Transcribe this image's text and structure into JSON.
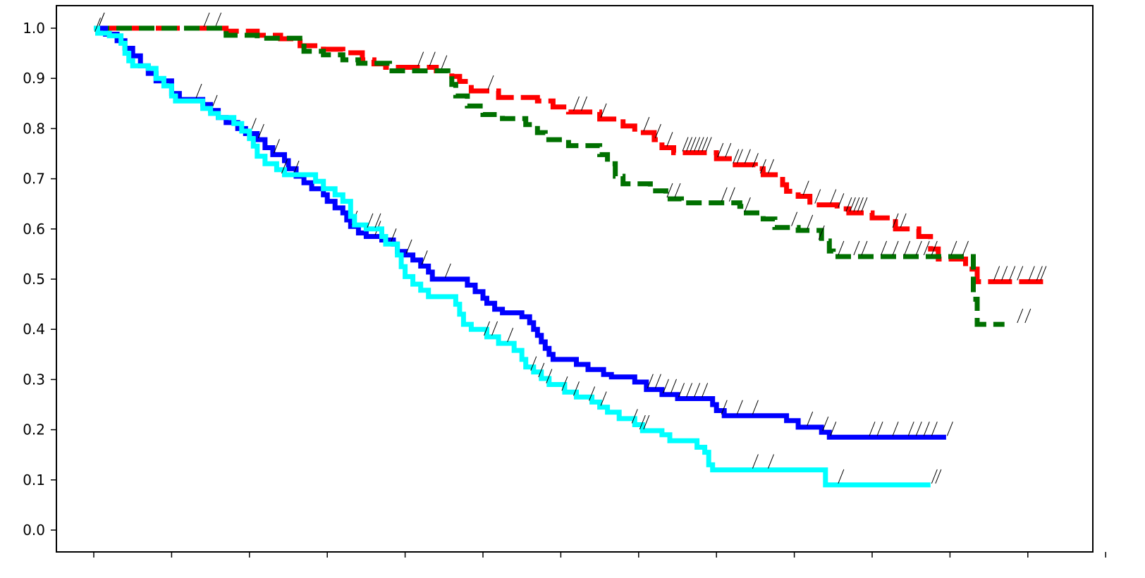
{
  "chart_data": {
    "type": "line",
    "chart_style": "kaplan-meier survival curves (step lines with censor tick marks)",
    "title": "",
    "xlabel": "",
    "ylabel": "",
    "ylim": [
      0.0,
      1.0
    ],
    "yticks": [
      "0.0",
      "0.1",
      "0.2",
      "0.3",
      "0.4",
      "0.5",
      "0.6",
      "0.7",
      "0.8",
      "0.9",
      "1.0"
    ],
    "x_tick_count": 14,
    "x_tick_labels_visible": false,
    "x_range": [
      0,
      13
    ],
    "grid": false,
    "legend": "none",
    "series": [
      {
        "color": "#ff0000",
        "line_style": "long-dash",
        "steps": [
          [
            0.0,
            1.0
          ],
          [
            1.7,
            0.994
          ],
          [
            2.1,
            0.986
          ],
          [
            2.4,
            0.979
          ],
          [
            2.65,
            0.965
          ],
          [
            2.95,
            0.958
          ],
          [
            3.2,
            0.951
          ],
          [
            3.45,
            0.937
          ],
          [
            3.6,
            0.929
          ],
          [
            3.75,
            0.922
          ],
          [
            4.4,
            0.915
          ],
          [
            4.6,
            0.904
          ],
          [
            4.7,
            0.894
          ],
          [
            4.85,
            0.875
          ],
          [
            5.2,
            0.862
          ],
          [
            5.7,
            0.855
          ],
          [
            5.9,
            0.843
          ],
          [
            6.1,
            0.833
          ],
          [
            6.5,
            0.819
          ],
          [
            6.8,
            0.805
          ],
          [
            6.95,
            0.792
          ],
          [
            7.2,
            0.778
          ],
          [
            7.3,
            0.762
          ],
          [
            7.45,
            0.752
          ],
          [
            8.0,
            0.74
          ],
          [
            8.2,
            0.728
          ],
          [
            8.5,
            0.72
          ],
          [
            8.6,
            0.708
          ],
          [
            8.85,
            0.688
          ],
          [
            8.9,
            0.675
          ],
          [
            9.05,
            0.665
          ],
          [
            9.2,
            0.648
          ],
          [
            9.55,
            0.64
          ],
          [
            9.7,
            0.632
          ],
          [
            10.0,
            0.622
          ],
          [
            10.3,
            0.6
          ],
          [
            10.6,
            0.585
          ],
          [
            10.75,
            0.56
          ],
          [
            10.85,
            0.54
          ],
          [
            11.2,
            0.52
          ],
          [
            11.35,
            0.495
          ],
          [
            12.2,
            0.495
          ]
        ],
        "censors": [
          0.1,
          1.45,
          1.6,
          4.2,
          4.35,
          4.5,
          5.1,
          6.2,
          6.3,
          6.55,
          7.1,
          7.25,
          7.4,
          7.6,
          7.65,
          7.7,
          7.75,
          7.8,
          7.85,
          7.9,
          8.05,
          8.15,
          8.25,
          8.3,
          8.4,
          8.5,
          8.6,
          8.7,
          9.15,
          9.3,
          9.5,
          9.6,
          9.7,
          9.75,
          9.8,
          9.85,
          9.9,
          10.3,
          10.4,
          11.6,
          11.7,
          11.8,
          11.9,
          12.05,
          12.15,
          12.2
        ]
      },
      {
        "color": "#007000",
        "line_style": "dash",
        "steps": [
          [
            0.0,
            1.0
          ],
          [
            1.7,
            0.986
          ],
          [
            2.1,
            0.98
          ],
          [
            2.7,
            0.954
          ],
          [
            2.95,
            0.947
          ],
          [
            3.2,
            0.937
          ],
          [
            3.4,
            0.93
          ],
          [
            3.8,
            0.915
          ],
          [
            4.55,
            0.905
          ],
          [
            4.6,
            0.888
          ],
          [
            4.65,
            0.865
          ],
          [
            4.8,
            0.845
          ],
          [
            5.0,
            0.828
          ],
          [
            5.25,
            0.82
          ],
          [
            5.55,
            0.808
          ],
          [
            5.7,
            0.792
          ],
          [
            5.8,
            0.778
          ],
          [
            6.1,
            0.766
          ],
          [
            6.5,
            0.748
          ],
          [
            6.6,
            0.73
          ],
          [
            6.7,
            0.705
          ],
          [
            6.8,
            0.69
          ],
          [
            7.15,
            0.676
          ],
          [
            7.35,
            0.66
          ],
          [
            7.55,
            0.652
          ],
          [
            8.3,
            0.645
          ],
          [
            8.35,
            0.632
          ],
          [
            8.6,
            0.62
          ],
          [
            8.75,
            0.603
          ],
          [
            9.05,
            0.597
          ],
          [
            9.35,
            0.576
          ],
          [
            9.45,
            0.556
          ],
          [
            9.5,
            0.545
          ],
          [
            11.25,
            0.545
          ],
          [
            11.3,
            0.46
          ],
          [
            11.35,
            0.41
          ],
          [
            11.7,
            0.41
          ]
        ],
        "censors": [
          7.4,
          7.5,
          8.1,
          8.2,
          8.4,
          9.0,
          9.2,
          9.35,
          9.6,
          9.8,
          9.9,
          10.15,
          10.3,
          10.45,
          10.6,
          10.7,
          10.8,
          11.05,
          11.2,
          11.9,
          12.0
        ]
      },
      {
        "color": "#0000ff",
        "line_style": "solid",
        "steps": [
          [
            0.0,
            1.0
          ],
          [
            0.15,
            0.988
          ],
          [
            0.3,
            0.975
          ],
          [
            0.4,
            0.96
          ],
          [
            0.5,
            0.945
          ],
          [
            0.6,
            0.925
          ],
          [
            0.7,
            0.91
          ],
          [
            0.8,
            0.895
          ],
          [
            1.0,
            0.87
          ],
          [
            1.1,
            0.858
          ],
          [
            1.4,
            0.848
          ],
          [
            1.5,
            0.836
          ],
          [
            1.6,
            0.822
          ],
          [
            1.7,
            0.812
          ],
          [
            1.85,
            0.8
          ],
          [
            1.95,
            0.79
          ],
          [
            2.1,
            0.778
          ],
          [
            2.2,
            0.762
          ],
          [
            2.3,
            0.748
          ],
          [
            2.45,
            0.736
          ],
          [
            2.5,
            0.72
          ],
          [
            2.6,
            0.705
          ],
          [
            2.7,
            0.692
          ],
          [
            2.8,
            0.68
          ],
          [
            2.95,
            0.668
          ],
          [
            3.0,
            0.655
          ],
          [
            3.1,
            0.642
          ],
          [
            3.2,
            0.632
          ],
          [
            3.25,
            0.618
          ],
          [
            3.3,
            0.605
          ],
          [
            3.4,
            0.592
          ],
          [
            3.5,
            0.585
          ],
          [
            3.7,
            0.578
          ],
          [
            3.85,
            0.57
          ],
          [
            3.9,
            0.555
          ],
          [
            4.0,
            0.548
          ],
          [
            4.1,
            0.538
          ],
          [
            4.2,
            0.526
          ],
          [
            4.3,
            0.514
          ],
          [
            4.35,
            0.5
          ],
          [
            4.8,
            0.488
          ],
          [
            4.9,
            0.475
          ],
          [
            5.0,
            0.462
          ],
          [
            5.05,
            0.452
          ],
          [
            5.15,
            0.44
          ],
          [
            5.25,
            0.433
          ],
          [
            5.5,
            0.425
          ],
          [
            5.6,
            0.413
          ],
          [
            5.65,
            0.4
          ],
          [
            5.7,
            0.388
          ],
          [
            5.75,
            0.375
          ],
          [
            5.8,
            0.362
          ],
          [
            5.85,
            0.35
          ],
          [
            5.9,
            0.34
          ],
          [
            6.2,
            0.33
          ],
          [
            6.35,
            0.32
          ],
          [
            6.55,
            0.31
          ],
          [
            6.65,
            0.305
          ],
          [
            6.95,
            0.295
          ],
          [
            7.1,
            0.28
          ],
          [
            7.3,
            0.27
          ],
          [
            7.5,
            0.262
          ],
          [
            7.95,
            0.25
          ],
          [
            8.0,
            0.238
          ],
          [
            8.1,
            0.228
          ],
          [
            8.9,
            0.218
          ],
          [
            9.05,
            0.205
          ],
          [
            9.35,
            0.195
          ],
          [
            9.45,
            0.185
          ],
          [
            10.95,
            0.185
          ]
        ],
        "censors": [
          0.1,
          1.35,
          1.55,
          2.05,
          2.15,
          2.35,
          2.6,
          3.35,
          3.65,
          3.85,
          4.05,
          4.25,
          4.55,
          7.15,
          7.25,
          7.35,
          7.45,
          7.55,
          7.65,
          7.75,
          7.85,
          8.1,
          8.3,
          8.5,
          9.2,
          9.4,
          9.5,
          10.0,
          10.1,
          10.3,
          10.5,
          10.6,
          10.7,
          10.8,
          11.0
        ]
      },
      {
        "color": "#00ffff",
        "line_style": "solid",
        "steps": [
          [
            0.0,
            1.0
          ],
          [
            0.05,
            0.99
          ],
          [
            0.2,
            0.985
          ],
          [
            0.35,
            0.97
          ],
          [
            0.4,
            0.95
          ],
          [
            0.45,
            0.935
          ],
          [
            0.5,
            0.925
          ],
          [
            0.7,
            0.92
          ],
          [
            0.8,
            0.9
          ],
          [
            0.9,
            0.885
          ],
          [
            1.0,
            0.865
          ],
          [
            1.05,
            0.855
          ],
          [
            1.4,
            0.84
          ],
          [
            1.5,
            0.83
          ],
          [
            1.6,
            0.822
          ],
          [
            1.8,
            0.81
          ],
          [
            1.9,
            0.795
          ],
          [
            2.0,
            0.78
          ],
          [
            2.05,
            0.765
          ],
          [
            2.1,
            0.745
          ],
          [
            2.2,
            0.73
          ],
          [
            2.35,
            0.718
          ],
          [
            2.45,
            0.708
          ],
          [
            2.85,
            0.695
          ],
          [
            2.95,
            0.68
          ],
          [
            3.1,
            0.668
          ],
          [
            3.2,
            0.655
          ],
          [
            3.3,
            0.645
          ],
          [
            3.3,
            0.625
          ],
          [
            3.35,
            0.608
          ],
          [
            3.5,
            0.6
          ],
          [
            3.7,
            0.585
          ],
          [
            3.75,
            0.57
          ],
          [
            3.9,
            0.548
          ],
          [
            3.95,
            0.525
          ],
          [
            4.0,
            0.505
          ],
          [
            4.1,
            0.49
          ],
          [
            4.2,
            0.478
          ],
          [
            4.3,
            0.465
          ],
          [
            4.65,
            0.45
          ],
          [
            4.7,
            0.43
          ],
          [
            4.75,
            0.41
          ],
          [
            4.85,
            0.4
          ],
          [
            5.05,
            0.385
          ],
          [
            5.2,
            0.372
          ],
          [
            5.4,
            0.358
          ],
          [
            5.5,
            0.34
          ],
          [
            5.55,
            0.325
          ],
          [
            5.65,
            0.315
          ],
          [
            5.75,
            0.302
          ],
          [
            5.85,
            0.29
          ],
          [
            6.05,
            0.275
          ],
          [
            6.2,
            0.265
          ],
          [
            6.4,
            0.255
          ],
          [
            6.5,
            0.245
          ],
          [
            6.6,
            0.235
          ],
          [
            6.75,
            0.222
          ],
          [
            6.95,
            0.21
          ],
          [
            7.05,
            0.198
          ],
          [
            7.3,
            0.19
          ],
          [
            7.4,
            0.178
          ],
          [
            7.75,
            0.165
          ],
          [
            7.85,
            0.155
          ],
          [
            7.9,
            0.13
          ],
          [
            7.95,
            0.12
          ],
          [
            9.35,
            0.12
          ],
          [
            9.4,
            0.09
          ],
          [
            10.75,
            0.09
          ]
        ],
        "censors": [
          0.05,
          2.45,
          3.55,
          3.65,
          5.05,
          5.15,
          5.35,
          5.65,
          5.75,
          5.85,
          6.05,
          6.2,
          6.4,
          6.55,
          6.95,
          7.05,
          7.1,
          8.5,
          8.7,
          9.6,
          10.8,
          10.85
        ]
      }
    ]
  }
}
